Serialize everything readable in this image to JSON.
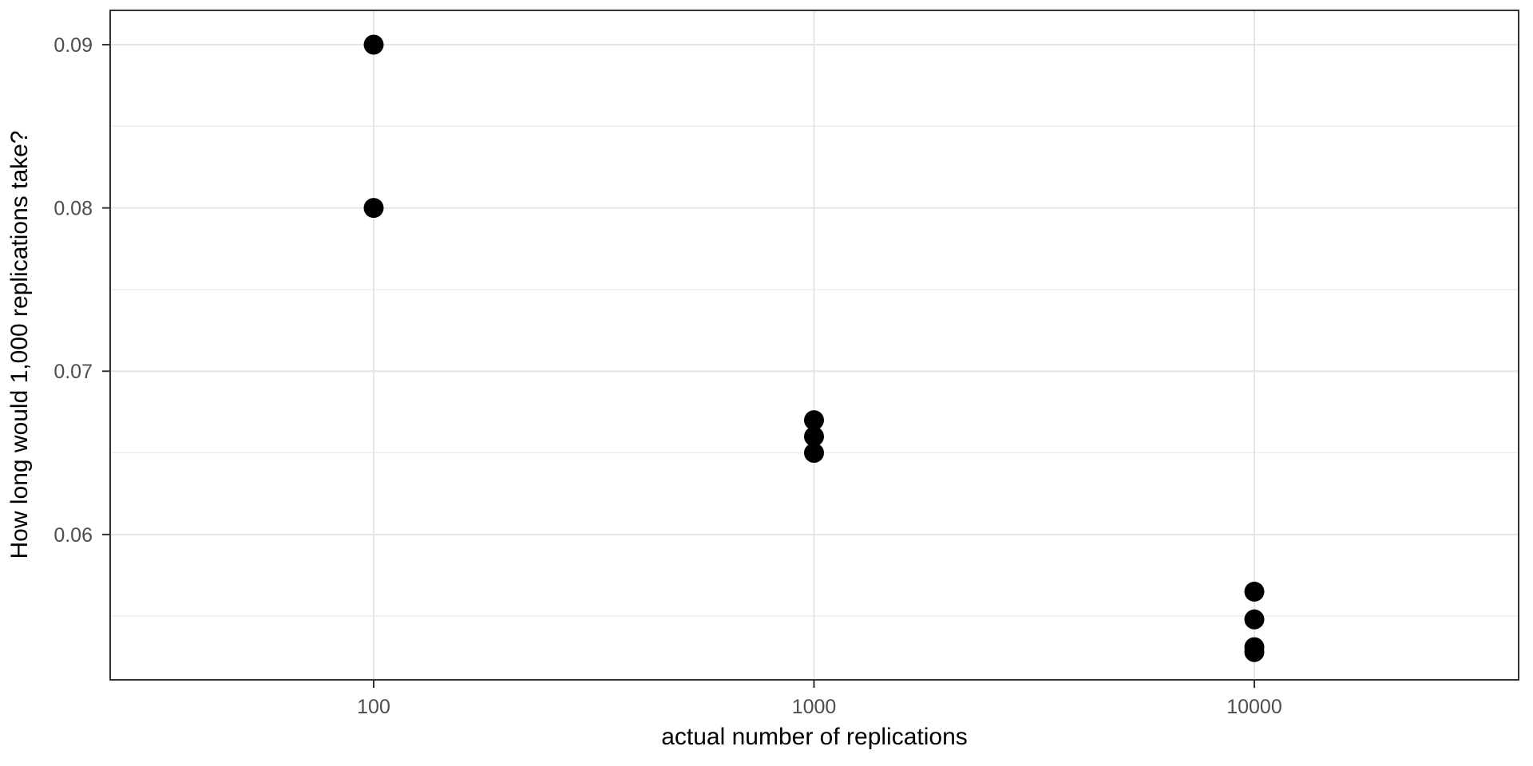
{
  "figure": {
    "background": "#ffffff"
  },
  "chart_data": {
    "type": "scatter",
    "title": "",
    "xlabel": "actual number of replications",
    "ylabel": "How long would 1,000 replications take?",
    "x_scale": "log10",
    "x_ticks": [
      100,
      1000,
      10000
    ],
    "x_tick_labels": [
      "100",
      "1000",
      "10000"
    ],
    "y_ticks": [
      0.06,
      0.07,
      0.08,
      0.09
    ],
    "y_tick_labels": [
      "0.06",
      "0.07",
      "0.08",
      "0.09"
    ],
    "y_minor_gridlines": [
      0.055,
      0.065,
      0.075,
      0.085
    ],
    "xlim_log10": [
      1.4016,
      4.6002
    ],
    "ylim": [
      0.0511,
      0.0921
    ],
    "grid": "major-and-minor-horizontal, major-vertical",
    "legend": "none",
    "points": [
      {
        "x": 100,
        "y": 0.09
      },
      {
        "x": 100,
        "y": 0.08
      },
      {
        "x": 1000,
        "y": 0.067
      },
      {
        "x": 1000,
        "y": 0.066
      },
      {
        "x": 1000,
        "y": 0.065
      },
      {
        "x": 10000,
        "y": 0.0565
      },
      {
        "x": 10000,
        "y": 0.0548
      },
      {
        "x": 10000,
        "y": 0.0531
      },
      {
        "x": 10000,
        "y": 0.0528
      }
    ],
    "style": {
      "point_color": "#000000",
      "point_radius": 12.5,
      "panel_background": "#ffffff",
      "panel_border_color": "#333333",
      "grid_major_color": "#e4e4e4",
      "grid_minor_color": "#ededed",
      "tick_mark_color": "#333333",
      "tick_label_color": "#4d4d4d",
      "axis_title_color": "#000000"
    }
  }
}
